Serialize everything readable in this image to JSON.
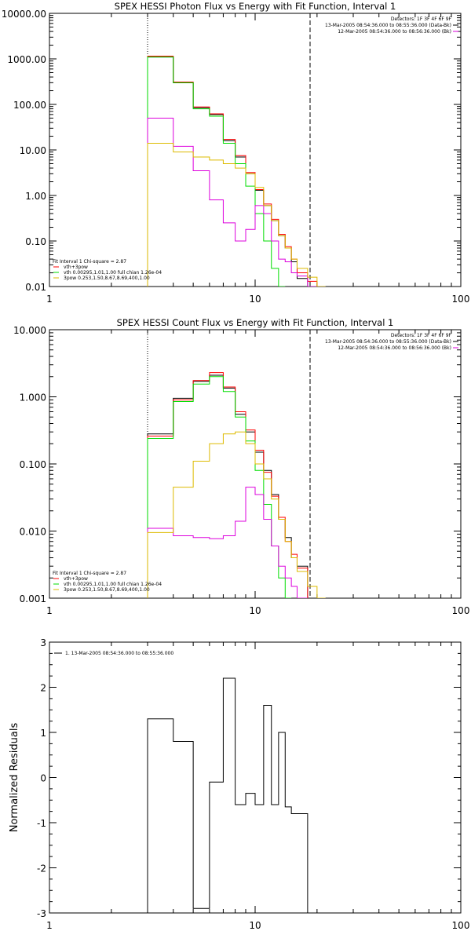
{
  "chart_data": [
    {
      "type": "line",
      "title": "SPEX HESSI Photon Flux vs Energy with Fit Function, Interval 1",
      "xscale": "log",
      "yscale": "log",
      "xlim": [
        1,
        100
      ],
      "ylim": [
        0.01,
        10000
      ],
      "x_ticks": [
        "1",
        "10",
        "100"
      ],
      "y_ticks": [
        "0.01",
        "0.10",
        "1.00",
        "10.00",
        "100.00",
        "1000.00",
        "10000.00"
      ],
      "vlines": [
        {
          "x": 3,
          "style": "dotted"
        },
        {
          "x": 18.5,
          "style": "dashed"
        }
      ],
      "header_lines": [
        "Detectors: 1F 3F 4F 6F 9F",
        "13-Mar-2005 08:54:36.000 to 08:55:36.000 (Data-Bk)",
        "12-Mar-2005 08:54:36.000 to 08:56:36.000 (Bk)"
      ],
      "legend_lines": [
        "Fit Interval 1    Chi-square = 2.87",
        "vth+3pow",
        "vth 0.00295,1.01,1.00  full chian 1.26e-04",
        "3pow 0.253,1.50,8.67,8.69,400,1.00"
      ],
      "edges": [
        3,
        4,
        5,
        6,
        7,
        8,
        9,
        10,
        11,
        12,
        13,
        14,
        15,
        16,
        18,
        20,
        22
      ],
      "series": [
        {
          "name": "",
          "color": "#000000",
          "values": [
            1100,
            300,
            85,
            60,
            16,
            7,
            3,
            1.3,
            0.6,
            0.28,
            0.13,
            0.07,
            0.035,
            0.015,
            0.01,
            null
          ]
        },
        {
          "name": "",
          "color": "#ff0000",
          "values": [
            1150,
            310,
            88,
            62,
            17,
            7.5,
            3.2,
            1.35,
            0.65,
            0.3,
            0.14,
            0.075,
            0.04,
            0.02,
            0.013,
            null
          ]
        },
        {
          "name": "",
          "color": "#00dd00",
          "values": [
            1100,
            300,
            80,
            55,
            14,
            5,
            1.6,
            0.4,
            0.1,
            0.025,
            0.009,
            null,
            null,
            null,
            null,
            null
          ]
        },
        {
          "name": "",
          "color": "#dd00dd",
          "values": [
            50,
            12,
            3.5,
            0.8,
            0.25,
            0.1,
            0.18,
            0.6,
            0.4,
            0.1,
            0.04,
            0.035,
            0.02,
            0.017,
            0.008,
            null
          ]
        },
        {
          "name": "",
          "color": "#ddbb00",
          "values": [
            14,
            9,
            7,
            6,
            5,
            4,
            3,
            1.5,
            0.6,
            0.28,
            0.13,
            0.07,
            0.04,
            0.025,
            0.016,
            0.01
          ]
        }
      ]
    },
    {
      "type": "line",
      "title": "SPEX HESSI Count Flux vs Energy with Fit Function, Interval 1",
      "xscale": "log",
      "yscale": "log",
      "xlim": [
        1,
        100
      ],
      "ylim": [
        0.001,
        10
      ],
      "x_ticks": [
        "1",
        "10",
        "100"
      ],
      "y_ticks": [
        "0.001",
        "0.010",
        "0.100",
        "1.000",
        "10.000"
      ],
      "vlines": [
        {
          "x": 3,
          "style": "dotted"
        },
        {
          "x": 18.5,
          "style": "dashed"
        }
      ],
      "header_lines": [
        "Detectors: 1F 3F 4F 6F 9F",
        "13-Mar-2005 08:54:36.000 to 08:55:36.000 (Data-Bk)",
        "12-Mar-2005 08:54:36.000 to 08:56:36.000 (Bk)"
      ],
      "legend_lines": [
        "Fit Interval 1    Chi-square = 2.87",
        "vth+3pow",
        "vth 0.00295,1.01,1.00  full chian 1.26e-04",
        "3pow 0.253,1.50,8.67,8.69,400,1.00"
      ],
      "edges": [
        3,
        4,
        5,
        6,
        7,
        8,
        9,
        10,
        11,
        12,
        13,
        14,
        15,
        16,
        18,
        20,
        22
      ],
      "series": [
        {
          "name": "",
          "color": "#000000",
          "values": [
            0.28,
            0.95,
            1.7,
            2.1,
            1.35,
            0.55,
            0.3,
            0.15,
            0.08,
            0.035,
            0.015,
            0.008,
            0.004,
            0.003,
            null,
            null
          ]
        },
        {
          "name": "",
          "color": "#ff0000",
          "values": [
            0.26,
            0.9,
            1.75,
            2.3,
            1.4,
            0.6,
            0.32,
            0.16,
            0.075,
            0.033,
            0.016,
            0.007,
            0.0045,
            0.0028,
            null,
            null
          ]
        },
        {
          "name": "",
          "color": "#00dd00",
          "values": [
            0.24,
            0.85,
            1.55,
            2.0,
            1.2,
            0.5,
            0.22,
            0.08,
            0.025,
            0.006,
            0.002,
            0.001,
            null,
            null,
            null,
            null
          ]
        },
        {
          "name": "",
          "color": "#dd00dd",
          "values": [
            0.011,
            0.0085,
            0.008,
            0.0077,
            0.0085,
            0.014,
            0.045,
            0.035,
            0.015,
            0.006,
            0.003,
            0.002,
            0.0015,
            0.001,
            null,
            null
          ]
        },
        {
          "name": "",
          "color": "#ddbb00",
          "values": [
            0.0095,
            0.045,
            0.11,
            0.2,
            0.28,
            0.3,
            0.2,
            0.1,
            0.06,
            0.03,
            0.015,
            0.007,
            0.004,
            0.0025,
            0.0015,
            0.001
          ]
        }
      ]
    },
    {
      "type": "line",
      "title": "",
      "ylabel": "Normalized Residuals",
      "xscale": "log",
      "xlim": [
        1,
        100
      ],
      "ylim": [
        -3,
        3
      ],
      "x_ticks": [
        "1",
        "10",
        "100"
      ],
      "y_ticks": [
        "-3",
        "-2",
        "-1",
        "0",
        "1",
        "2",
        "3"
      ],
      "legend_lines": [
        "1. 13-Mar-2005 08:54:36.000 to 08:55:36.000"
      ],
      "edges": [
        3,
        4,
        5,
        6,
        7,
        8,
        9,
        10,
        11,
        12,
        13,
        14,
        15,
        16,
        18
      ],
      "series": [
        {
          "name": "1. 13-Mar-2005 08:54:36.000 to 08:55:36.000",
          "color": "#000000",
          "values": [
            1.3,
            0.8,
            -2.9,
            -0.1,
            2.2,
            -0.6,
            -0.35,
            -0.6,
            1.6,
            -0.6,
            1.0,
            -0.65,
            -0.8,
            -0.8
          ]
        }
      ]
    }
  ]
}
